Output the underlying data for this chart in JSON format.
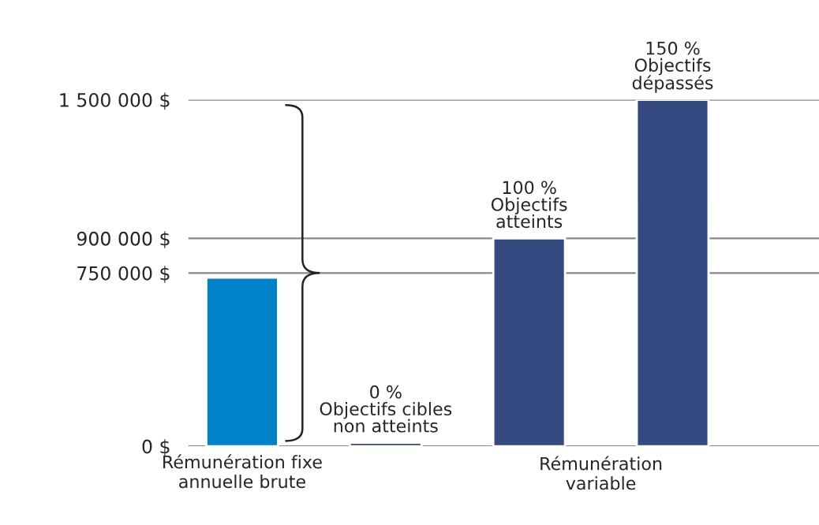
{
  "chart_data": {
    "type": "bar",
    "categories": [
      "Rémunération fixe\nannuelle brute",
      null,
      null,
      null
    ],
    "values": [
      730000,
      15000,
      900000,
      1500000
    ],
    "colors": [
      "#0082ca",
      "#364a82",
      "#364a82",
      "#364a82"
    ],
    "annotations": [
      "0 %\nObjectifs cibles\nnon atteints",
      "100 %\nObjectifs\natteints",
      "150 %\nObjectifs\ndépassés",
      "Rémunération\nvariable"
    ],
    "ylim": [
      0,
      1500000
    ],
    "yticks": [
      {
        "value": 0,
        "label": "0 $"
      },
      {
        "value": 750000,
        "label": "750 000 $"
      },
      {
        "value": 900000,
        "label": "900 000 $"
      },
      {
        "value": 1500000,
        "label": "1 500 000 $"
      }
    ],
    "grid": "y",
    "legend": false
  }
}
